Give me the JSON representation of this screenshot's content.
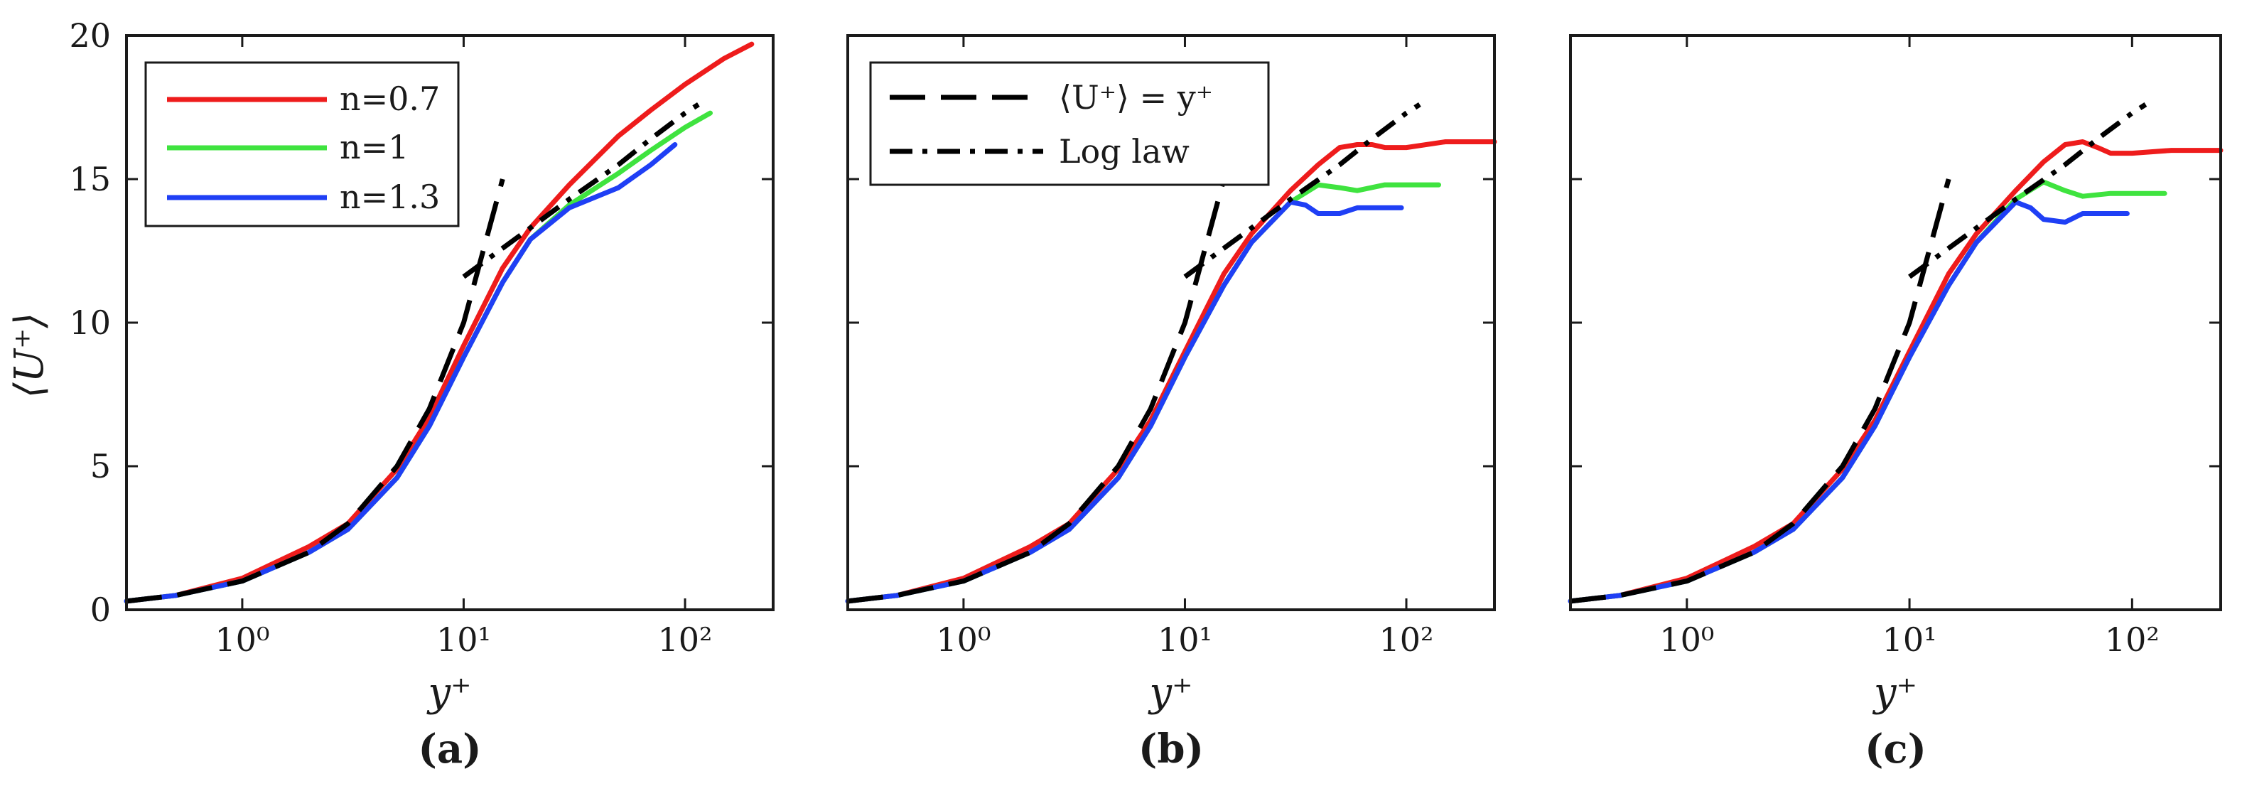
{
  "figure": {
    "ylabel": "⟨U⁺⟩",
    "xlabel": "y⁺"
  },
  "colors": {
    "n07": "#ee1c1c",
    "n1": "#3fe33f",
    "n13": "#1f3ff5",
    "ref": "#000000"
  },
  "legends": {
    "series": [
      "n=0.7",
      "n=1",
      "n=1.3"
    ],
    "reference": [
      "⟨U⁺⟩ = y⁺",
      "Log law"
    ]
  },
  "chart_data": [
    {
      "type": "line",
      "panel": "(a)",
      "xscale": "log",
      "xlim": [
        0.3,
        250
      ],
      "ylim": [
        0,
        20
      ],
      "xticks": [
        "10⁰",
        "10¹",
        "10²"
      ],
      "yticks": [
        "0",
        "5",
        "10",
        "15",
        "20"
      ],
      "xlabel": "y⁺",
      "ylabel": "⟨U⁺⟩",
      "legend": "top-left",
      "series": [
        {
          "name": "n=0.7",
          "color": "#ee1c1c",
          "x": [
            0.3,
            0.5,
            1,
            2,
            3,
            5,
            7,
            10,
            15,
            20,
            30,
            50,
            70,
            100,
            150,
            200
          ],
          "y": [
            0.3,
            0.5,
            1.1,
            2.2,
            3.0,
            4.9,
            6.7,
            9.2,
            11.9,
            13.3,
            14.8,
            16.5,
            17.4,
            18.3,
            19.2,
            19.7
          ]
        },
        {
          "name": "n=1",
          "color": "#3fe33f",
          "x": [
            0.3,
            0.5,
            1,
            2,
            3,
            5,
            7,
            10,
            15,
            20,
            30,
            50,
            70,
            100,
            130
          ],
          "y": [
            0.3,
            0.5,
            1.0,
            2.0,
            2.8,
            4.6,
            6.4,
            8.8,
            11.4,
            12.9,
            14.1,
            15.2,
            16.0,
            16.8,
            17.3
          ]
        },
        {
          "name": "n=1.3",
          "color": "#1f3ff5",
          "x": [
            0.3,
            0.5,
            1,
            2,
            3,
            5,
            7,
            10,
            15,
            20,
            30,
            50,
            70,
            90
          ],
          "y": [
            0.3,
            0.5,
            1.0,
            2.0,
            2.8,
            4.6,
            6.4,
            8.8,
            11.4,
            12.9,
            14.0,
            14.7,
            15.5,
            16.2
          ]
        },
        {
          "name": "⟨U⁺⟩ = y⁺",
          "color": "#000000",
          "style": "dashed",
          "x": [
            0.3,
            0.5,
            1,
            2,
            3,
            5,
            7,
            10,
            15
          ],
          "y": [
            0.3,
            0.5,
            1,
            2,
            3,
            5,
            7,
            10,
            15
          ]
        },
        {
          "name": "Log law",
          "color": "#000000",
          "style": "dashdot",
          "x": [
            10,
            20,
            30,
            50,
            70,
            100,
            115
          ],
          "y": [
            11.6,
            13.3,
            14.3,
            15.5,
            16.4,
            17.3,
            17.6
          ]
        }
      ]
    },
    {
      "type": "line",
      "panel": "(b)",
      "xscale": "log",
      "xlim": [
        0.3,
        250
      ],
      "ylim": [
        0,
        20
      ],
      "xticks": [
        "10⁰",
        "10¹",
        "10²"
      ],
      "yticks": [],
      "xlabel": "y⁺",
      "legend": "top-left",
      "series": [
        {
          "name": "n=0.7",
          "color": "#ee1c1c",
          "x": [
            0.3,
            0.5,
            1,
            2,
            3,
            5,
            7,
            10,
            15,
            20,
            30,
            40,
            50,
            60,
            70,
            80,
            100,
            150,
            250
          ],
          "y": [
            0.3,
            0.5,
            1.1,
            2.2,
            3.0,
            4.9,
            6.6,
            9.0,
            11.7,
            13.1,
            14.6,
            15.5,
            16.1,
            16.2,
            16.2,
            16.1,
            16.1,
            16.3,
            16.3
          ]
        },
        {
          "name": "n=1",
          "color": "#3fe33f",
          "x": [
            0.3,
            0.5,
            1,
            2,
            3,
            5,
            7,
            10,
            15,
            20,
            30,
            40,
            50,
            60,
            80,
            100,
            140
          ],
          "y": [
            0.3,
            0.5,
            1.0,
            2.0,
            2.8,
            4.6,
            6.4,
            8.8,
            11.3,
            12.8,
            14.2,
            14.8,
            14.7,
            14.6,
            14.8,
            14.8,
            14.8
          ]
        },
        {
          "name": "n=1.3",
          "color": "#1f3ff5",
          "x": [
            0.3,
            0.5,
            1,
            2,
            3,
            5,
            7,
            10,
            15,
            20,
            30,
            35,
            40,
            50,
            60,
            70,
            95
          ],
          "y": [
            0.3,
            0.5,
            1.0,
            2.0,
            2.8,
            4.6,
            6.4,
            8.8,
            11.3,
            12.8,
            14.2,
            14.1,
            13.8,
            13.8,
            14.0,
            14.0,
            14.0
          ]
        },
        {
          "name": "⟨U⁺⟩ = y⁺",
          "color": "#000000",
          "style": "dashed",
          "x": [
            0.3,
            0.5,
            1,
            2,
            3,
            5,
            7,
            10,
            15
          ],
          "y": [
            0.3,
            0.5,
            1,
            2,
            3,
            5,
            7,
            10,
            15
          ]
        },
        {
          "name": "Log law",
          "color": "#000000",
          "style": "dashdot",
          "x": [
            10,
            20,
            30,
            50,
            70,
            100,
            115
          ],
          "y": [
            11.6,
            13.3,
            14.3,
            15.5,
            16.4,
            17.3,
            17.6
          ]
        }
      ]
    },
    {
      "type": "line",
      "panel": "(c)",
      "xscale": "log",
      "xlim": [
        0.3,
        250
      ],
      "ylim": [
        0,
        20
      ],
      "xticks": [
        "10⁰",
        "10¹",
        "10²"
      ],
      "yticks": [],
      "xlabel": "y⁺",
      "series": [
        {
          "name": "n=0.7",
          "color": "#ee1c1c",
          "x": [
            0.3,
            0.5,
            1,
            2,
            3,
            5,
            7,
            10,
            15,
            20,
            30,
            40,
            50,
            60,
            70,
            80,
            100,
            150,
            250
          ],
          "y": [
            0.3,
            0.5,
            1.1,
            2.2,
            3.0,
            4.9,
            6.6,
            9.0,
            11.7,
            13.1,
            14.6,
            15.6,
            16.2,
            16.3,
            16.1,
            15.9,
            15.9,
            16.0,
            16.0
          ]
        },
        {
          "name": "n=1",
          "color": "#3fe33f",
          "x": [
            0.3,
            0.5,
            1,
            2,
            3,
            5,
            7,
            10,
            15,
            20,
            30,
            40,
            50,
            60,
            80,
            100,
            140
          ],
          "y": [
            0.3,
            0.5,
            1.0,
            2.0,
            2.8,
            4.6,
            6.4,
            8.8,
            11.3,
            12.8,
            14.3,
            14.9,
            14.6,
            14.4,
            14.5,
            14.5,
            14.5
          ]
        },
        {
          "name": "n=1.3",
          "color": "#1f3ff5",
          "x": [
            0.3,
            0.5,
            1,
            2,
            3,
            5,
            7,
            10,
            15,
            20,
            30,
            35,
            40,
            50,
            60,
            70,
            95
          ],
          "y": [
            0.3,
            0.5,
            1.0,
            2.0,
            2.8,
            4.6,
            6.4,
            8.8,
            11.3,
            12.8,
            14.2,
            14.0,
            13.6,
            13.5,
            13.8,
            13.8,
            13.8
          ]
        },
        {
          "name": "⟨U⁺⟩ = y⁺",
          "color": "#000000",
          "style": "dashed",
          "x": [
            0.3,
            0.5,
            1,
            2,
            3,
            5,
            7,
            10,
            15
          ],
          "y": [
            0.3,
            0.5,
            1,
            2,
            3,
            5,
            7,
            10,
            15
          ]
        },
        {
          "name": "Log law",
          "color": "#000000",
          "style": "dashdot",
          "x": [
            10,
            20,
            30,
            50,
            70,
            100,
            115
          ],
          "y": [
            11.6,
            13.3,
            14.3,
            15.5,
            16.4,
            17.3,
            17.6
          ]
        }
      ]
    }
  ]
}
